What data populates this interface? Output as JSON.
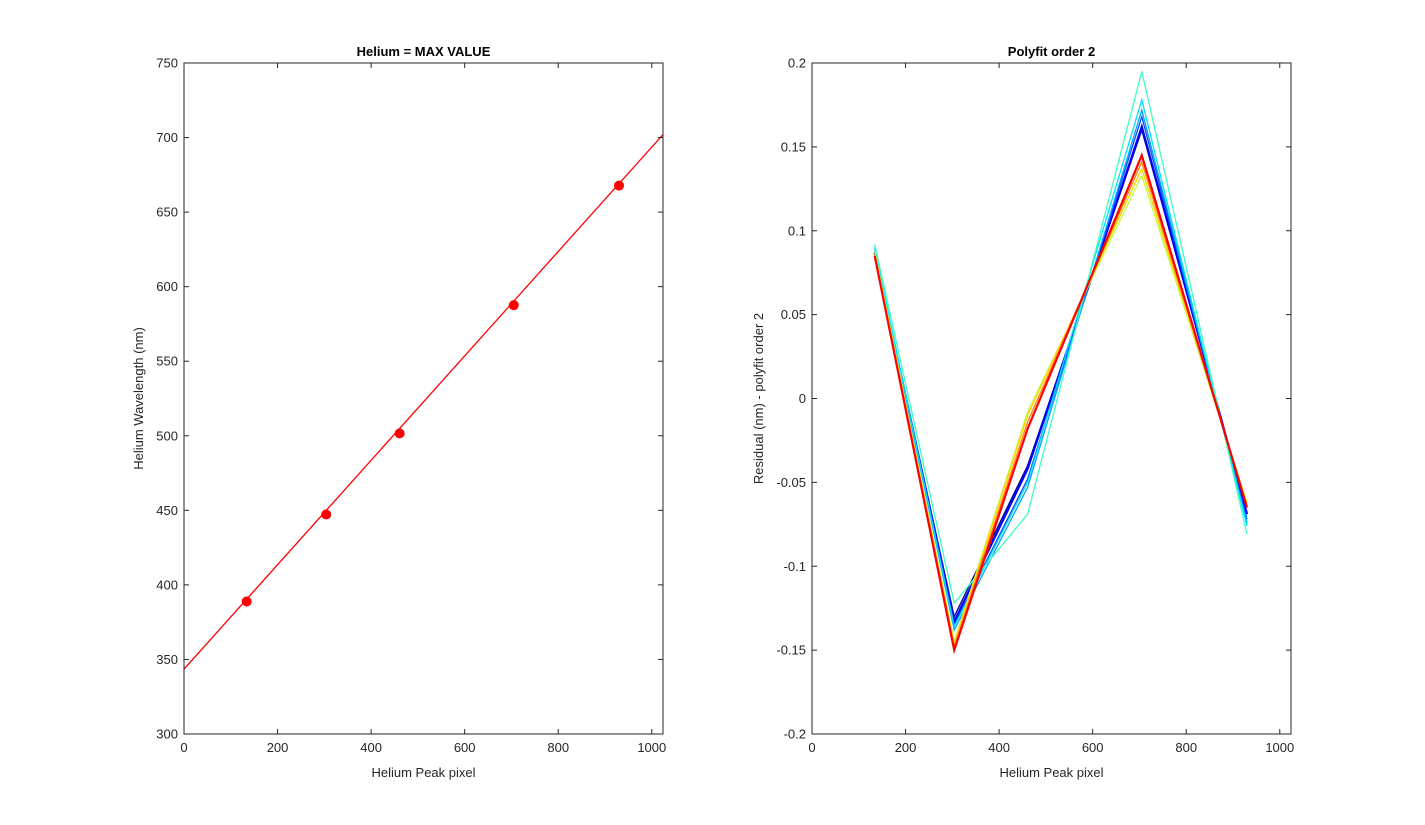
{
  "chart_data": [
    {
      "type": "line",
      "title": "Helium = MAX VALUE",
      "xlabel": "Helium Peak pixel",
      "ylabel": "Helium Wavelength (nm)",
      "xlim": [
        0,
        1024
      ],
      "ylim": [
        300,
        750
      ],
      "xticks": [
        0,
        200,
        400,
        600,
        800,
        1000
      ],
      "yticks": [
        300,
        350,
        400,
        450,
        500,
        550,
        600,
        650,
        700,
        750
      ],
      "grid": false,
      "line_color": "#ff0000",
      "fit_line": {
        "x": [
          0,
          1024
        ],
        "y": [
          343.5,
          702
        ]
      },
      "points": {
        "x": [
          134,
          304,
          461,
          705,
          930
        ],
        "y": [
          388.9,
          447.2,
          501.6,
          587.6,
          667.8
        ]
      }
    },
    {
      "type": "line",
      "title": "Polyfit order 2",
      "xlabel": "Helium Peak pixel",
      "ylabel": "Residual (nm) - polyfit order 2",
      "xlim": [
        0,
        1024
      ],
      "ylim": [
        -0.2,
        0.2
      ],
      "xticks": [
        0,
        200,
        400,
        600,
        800,
        1000
      ],
      "yticks": [
        -0.2,
        -0.15,
        -0.1,
        -0.05,
        0,
        0.05,
        0.1,
        0.15,
        0.2
      ],
      "grid": false,
      "x": [
        134,
        304,
        461,
        705,
        930
      ],
      "series": [
        {
          "color": "#00008f",
          "values": [
            0.086,
            -0.13,
            -0.04,
            0.16,
            -0.068
          ]
        },
        {
          "color": "#0000ff",
          "values": [
            0.087,
            -0.133,
            -0.042,
            0.162,
            -0.069
          ]
        },
        {
          "color": "#0050ff",
          "values": [
            0.088,
            -0.135,
            -0.048,
            0.168,
            -0.072
          ]
        },
        {
          "color": "#00a0ff",
          "values": [
            0.089,
            -0.138,
            -0.053,
            0.172,
            -0.074
          ]
        },
        {
          "color": "#00e0ff",
          "values": [
            0.09,
            -0.136,
            -0.05,
            0.178,
            -0.076
          ]
        },
        {
          "color": "#40ffc0",
          "values": [
            0.092,
            -0.122,
            -0.069,
            0.195,
            -0.081
          ]
        },
        {
          "color": "#c0ff40",
          "values": [
            0.088,
            -0.145,
            -0.008,
            0.133,
            -0.062
          ]
        },
        {
          "color": "#ffd000",
          "values": [
            0.086,
            -0.146,
            -0.01,
            0.137,
            -0.063
          ]
        },
        {
          "color": "#ff8000",
          "values": [
            0.085,
            -0.148,
            -0.014,
            0.141,
            -0.064
          ]
        },
        {
          "color": "#ff0000",
          "values": [
            0.085,
            -0.15,
            -0.018,
            0.145,
            -0.065
          ]
        }
      ]
    }
  ]
}
